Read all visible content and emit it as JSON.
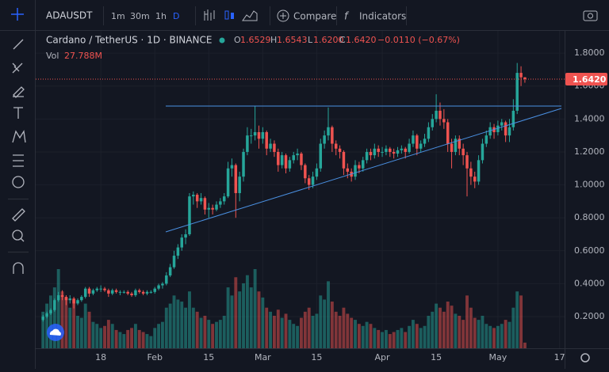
{
  "toolbar": {
    "symbol": "ADAUSDT",
    "intervals": [
      "1m",
      "30m",
      "1h",
      "D"
    ],
    "compare": "Compare",
    "indicators": "Indicators"
  },
  "chart_data": {
    "type": "candlestick",
    "title": "Cardano / TetherUS · 1D · BINANCE",
    "legend": [
      {
        "label": "O",
        "value": "1.6529"
      },
      {
        "label": "H",
        "value": "1.6543"
      },
      {
        "label": "L",
        "value": "1.6200"
      },
      {
        "label": "C",
        "value": "1.6420"
      }
    ],
    "change": "−0.0110 (−0.67%)",
    "volume_name": "Vol",
    "volume_label": "27.788M",
    "last_price": "1.6420",
    "up_color": "#26a69a",
    "down_color": "#ef5350",
    "xlim": [
      -1.9,
      135.3
    ],
    "ylim": [
      0.008,
      1.935
    ],
    "xticks": [
      {
        "value": 15,
        "label": "18"
      },
      {
        "value": 29,
        "label": "Feb"
      },
      {
        "value": 43,
        "label": "15"
      },
      {
        "value": 57,
        "label": "Mar"
      },
      {
        "value": 71,
        "label": "15"
      },
      {
        "value": 88,
        "label": "Apr"
      },
      {
        "value": 102,
        "label": "15"
      },
      {
        "value": 118,
        "label": "May"
      },
      {
        "value": 134,
        "label": "17"
      }
    ],
    "yticks": [
      {
        "value": 0.2,
        "label": "0.2000"
      },
      {
        "value": 0.4,
        "label": "0.4000"
      },
      {
        "value": 0.6,
        "label": "0.6000"
      },
      {
        "value": 0.8,
        "label": "0.8000"
      },
      {
        "value": 1.0,
        "label": "1.0000"
      },
      {
        "value": 1.2,
        "label": "1.2000"
      },
      {
        "value": 1.4,
        "label": "1.4000"
      },
      {
        "value": 1.6,
        "label": "1.6000"
      },
      {
        "value": 1.8,
        "label": "1.8000"
      }
    ],
    "candles": [
      [
        0.18,
        0.21,
        0.17,
        0.2
      ],
      [
        0.2,
        0.23,
        0.19,
        0.22
      ],
      [
        0.22,
        0.25,
        0.21,
        0.24
      ],
      [
        0.24,
        0.31,
        0.23,
        0.3
      ],
      [
        0.3,
        0.35,
        0.29,
        0.33
      ],
      [
        0.33,
        0.36,
        0.3,
        0.32
      ],
      [
        0.32,
        0.33,
        0.27,
        0.3
      ],
      [
        0.3,
        0.33,
        0.28,
        0.31
      ],
      [
        0.31,
        0.32,
        0.25,
        0.28
      ],
      [
        0.28,
        0.31,
        0.27,
        0.3
      ],
      [
        0.3,
        0.33,
        0.29,
        0.32
      ],
      [
        0.32,
        0.38,
        0.31,
        0.37
      ],
      [
        0.37,
        0.38,
        0.32,
        0.34
      ],
      [
        0.34,
        0.37,
        0.33,
        0.36
      ],
      [
        0.36,
        0.38,
        0.35,
        0.37
      ],
      [
        0.37,
        0.39,
        0.35,
        0.37
      ],
      [
        0.37,
        0.38,
        0.35,
        0.36
      ],
      [
        0.36,
        0.37,
        0.32,
        0.34
      ],
      [
        0.34,
        0.37,
        0.33,
        0.36
      ],
      [
        0.36,
        0.37,
        0.34,
        0.35
      ],
      [
        0.35,
        0.36,
        0.33,
        0.35
      ],
      [
        0.35,
        0.36,
        0.34,
        0.35
      ],
      [
        0.35,
        0.36,
        0.33,
        0.34
      ],
      [
        0.34,
        0.35,
        0.32,
        0.33
      ],
      [
        0.33,
        0.37,
        0.32,
        0.36
      ],
      [
        0.36,
        0.37,
        0.34,
        0.35
      ],
      [
        0.35,
        0.36,
        0.33,
        0.34
      ],
      [
        0.34,
        0.36,
        0.33,
        0.35
      ],
      [
        0.35,
        0.36,
        0.34,
        0.35
      ],
      [
        0.35,
        0.38,
        0.34,
        0.37
      ],
      [
        0.37,
        0.4,
        0.36,
        0.39
      ],
      [
        0.39,
        0.41,
        0.37,
        0.4
      ],
      [
        0.4,
        0.47,
        0.39,
        0.45
      ],
      [
        0.45,
        0.52,
        0.44,
        0.5
      ],
      [
        0.5,
        0.6,
        0.49,
        0.57
      ],
      [
        0.57,
        0.64,
        0.55,
        0.62
      ],
      [
        0.62,
        0.7,
        0.6,
        0.68
      ],
      [
        0.68,
        0.73,
        0.64,
        0.7
      ],
      [
        0.7,
        0.95,
        0.69,
        0.93
      ],
      [
        0.93,
        0.96,
        0.88,
        0.94
      ],
      [
        0.94,
        0.95,
        0.86,
        0.9
      ],
      [
        0.9,
        0.95,
        0.88,
        0.92
      ],
      [
        0.92,
        0.93,
        0.82,
        0.85
      ],
      [
        0.85,
        0.89,
        0.8,
        0.86
      ],
      [
        0.86,
        0.88,
        0.82,
        0.85
      ],
      [
        0.85,
        0.9,
        0.84,
        0.88
      ],
      [
        0.88,
        0.92,
        0.86,
        0.9
      ],
      [
        0.9,
        0.95,
        0.88,
        0.93
      ],
      [
        0.93,
        1.14,
        0.92,
        1.1
      ],
      [
        1.1,
        1.16,
        1.05,
        1.12
      ],
      [
        1.12,
        1.13,
        0.8,
        0.95
      ],
      [
        0.95,
        1.08,
        0.9,
        1.05
      ],
      [
        1.05,
        1.22,
        1.02,
        1.2
      ],
      [
        1.2,
        1.35,
        1.18,
        1.3
      ],
      [
        1.3,
        1.34,
        1.25,
        1.3
      ],
      [
        1.3,
        1.48,
        1.27,
        1.32
      ],
      [
        1.32,
        1.36,
        1.22,
        1.28
      ],
      [
        1.28,
        1.35,
        1.25,
        1.32
      ],
      [
        1.32,
        1.33,
        1.18,
        1.22
      ],
      [
        1.22,
        1.28,
        1.2,
        1.25
      ],
      [
        1.25,
        1.27,
        1.17,
        1.2
      ],
      [
        1.2,
        1.22,
        1.08,
        1.12
      ],
      [
        1.12,
        1.2,
        1.1,
        1.18
      ],
      [
        1.18,
        1.19,
        1.07,
        1.1
      ],
      [
        1.1,
        1.17,
        1.08,
        1.15
      ],
      [
        1.15,
        1.2,
        1.13,
        1.18
      ],
      [
        1.18,
        1.22,
        1.15,
        1.19
      ],
      [
        1.19,
        1.2,
        1.09,
        1.12
      ],
      [
        1.12,
        1.13,
        1.01,
        1.04
      ],
      [
        1.04,
        1.06,
        0.97,
        1.0
      ],
      [
        1.0,
        1.08,
        0.98,
        1.05
      ],
      [
        1.05,
        1.13,
        1.03,
        1.1
      ],
      [
        1.1,
        1.28,
        1.08,
        1.25
      ],
      [
        1.25,
        1.33,
        1.22,
        1.3
      ],
      [
        1.3,
        1.47,
        1.27,
        1.35
      ],
      [
        1.35,
        1.36,
        1.2,
        1.25
      ],
      [
        1.25,
        1.27,
        1.18,
        1.22
      ],
      [
        1.22,
        1.24,
        1.16,
        1.2
      ],
      [
        1.2,
        1.21,
        1.06,
        1.1
      ],
      [
        1.1,
        1.13,
        1.04,
        1.08
      ],
      [
        1.08,
        1.1,
        1.02,
        1.05
      ],
      [
        1.05,
        1.15,
        1.03,
        1.12
      ],
      [
        1.12,
        1.14,
        1.07,
        1.1
      ],
      [
        1.1,
        1.17,
        1.08,
        1.15
      ],
      [
        1.15,
        1.22,
        1.13,
        1.2
      ],
      [
        1.2,
        1.22,
        1.15,
        1.18
      ],
      [
        1.18,
        1.25,
        1.16,
        1.22
      ],
      [
        1.22,
        1.24,
        1.17,
        1.2
      ],
      [
        1.2,
        1.23,
        1.17,
        1.2
      ],
      [
        1.2,
        1.24,
        1.18,
        1.22
      ],
      [
        1.22,
        1.23,
        1.17,
        1.2
      ],
      [
        1.2,
        1.22,
        1.16,
        1.19
      ],
      [
        1.19,
        1.23,
        1.17,
        1.21
      ],
      [
        1.21,
        1.24,
        1.19,
        1.22
      ],
      [
        1.22,
        1.23,
        1.16,
        1.2
      ],
      [
        1.2,
        1.28,
        1.19,
        1.25
      ],
      [
        1.25,
        1.33,
        1.23,
        1.3
      ],
      [
        1.3,
        1.31,
        1.18,
        1.22
      ],
      [
        1.22,
        1.27,
        1.2,
        1.25
      ],
      [
        1.25,
        1.31,
        1.23,
        1.28
      ],
      [
        1.28,
        1.38,
        1.26,
        1.35
      ],
      [
        1.35,
        1.43,
        1.33,
        1.4
      ],
      [
        1.4,
        1.55,
        1.38,
        1.45
      ],
      [
        1.45,
        1.5,
        1.36,
        1.4
      ],
      [
        1.4,
        1.46,
        1.34,
        1.38
      ],
      [
        1.38,
        1.4,
        1.2,
        1.25
      ],
      [
        1.25,
        1.28,
        1.1,
        1.2
      ],
      [
        1.2,
        1.3,
        1.18,
        1.28
      ],
      [
        1.28,
        1.3,
        1.18,
        1.22
      ],
      [
        1.22,
        1.25,
        1.12,
        1.18
      ],
      [
        1.18,
        1.2,
        0.93,
        1.1
      ],
      [
        1.1,
        1.14,
        1.0,
        1.05
      ],
      [
        1.05,
        1.08,
        0.98,
        1.02
      ],
      [
        1.02,
        1.18,
        1.0,
        1.15
      ],
      [
        1.15,
        1.28,
        1.13,
        1.25
      ],
      [
        1.25,
        1.33,
        1.23,
        1.3
      ],
      [
        1.3,
        1.38,
        1.28,
        1.35
      ],
      [
        1.35,
        1.37,
        1.28,
        1.32
      ],
      [
        1.32,
        1.39,
        1.3,
        1.36
      ],
      [
        1.36,
        1.4,
        1.33,
        1.38
      ],
      [
        1.38,
        1.39,
        1.26,
        1.3
      ],
      [
        1.3,
        1.4,
        1.26,
        1.35
      ],
      [
        1.35,
        1.52,
        1.33,
        1.45
      ],
      [
        1.45,
        1.74,
        1.43,
        1.68
      ],
      [
        1.68,
        1.72,
        1.6,
        1.6529
      ],
      [
        1.6529,
        1.6543,
        1.62,
        1.642
      ]
    ],
    "volumes": [
      180,
      220,
      260,
      300,
      390,
      280,
      250,
      200,
      240,
      160,
      150,
      220,
      180,
      130,
      120,
      100,
      110,
      140,
      120,
      90,
      80,
      70,
      90,
      100,
      120,
      90,
      80,
      70,
      60,
      100,
      120,
      130,
      200,
      220,
      260,
      240,
      230,
      200,
      280,
      200,
      180,
      150,
      160,
      140,
      120,
      130,
      140,
      160,
      300,
      260,
      350,
      280,
      320,
      360,
      300,
      390,
      280,
      250,
      200,
      180,
      160,
      190,
      150,
      170,
      140,
      120,
      110,
      150,
      180,
      200,
      160,
      170,
      260,
      240,
      330,
      230,
      180,
      160,
      200,
      170,
      150,
      140,
      120,
      110,
      130,
      120,
      100,
      90,
      80,
      90,
      70,
      80,
      90,
      100,
      80,
      110,
      140,
      120,
      100,
      110,
      160,
      180,
      220,
      200,
      180,
      230,
      210,
      170,
      160,
      140,
      260,
      200,
      150,
      140,
      160,
      120,
      110,
      100,
      110,
      120,
      140,
      130,
      200,
      280,
      260,
      27.788
    ]
  }
}
